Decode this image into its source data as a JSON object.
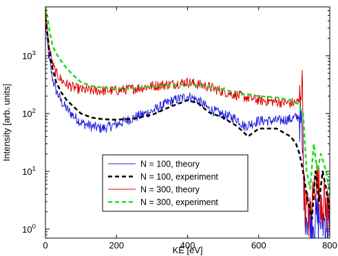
{
  "chart_data": {
    "type": "line",
    "title": "",
    "xlabel": "KE [eV]",
    "ylabel": "Intensity [arb. units]",
    "xlim": [
      0,
      800
    ],
    "ylim": [
      0.7,
      7000
    ],
    "yscale": "log",
    "grid": false,
    "legend_position": "bottom-center",
    "x_ticks": [
      {
        "value": 0,
        "label": "0"
      },
      {
        "value": 200,
        "label": "200"
      },
      {
        "value": 400,
        "label": "400"
      },
      {
        "value": 600,
        "label": "600"
      },
      {
        "value": 800,
        "label": "800"
      }
    ],
    "y_ticks": [
      {
        "value": 1,
        "base": "10",
        "exp": "0"
      },
      {
        "value": 10,
        "base": "10",
        "exp": "1"
      },
      {
        "value": 100,
        "base": "10",
        "exp": "2"
      },
      {
        "value": 1000,
        "base": "10",
        "exp": "3"
      }
    ],
    "series": [
      {
        "name": "N = 100, theory",
        "color": "#1f1fdc",
        "style": "solid",
        "noisy": true,
        "x": [
          0,
          5,
          10,
          20,
          30,
          45,
          60,
          80,
          100,
          130,
          160,
          200,
          250,
          300,
          350,
          400,
          430,
          460,
          500,
          540,
          560,
          600,
          650,
          690,
          715,
          720,
          725,
          730,
          740,
          760,
          780,
          800
        ],
        "y": [
          3500,
          1800,
          900,
          400,
          250,
          160,
          120,
          90,
          70,
          60,
          55,
          65,
          85,
          110,
          160,
          200,
          170,
          120,
          95,
          80,
          60,
          75,
          75,
          80,
          90,
          60,
          12,
          2.5,
          1.5,
          1.5,
          1.5,
          1.2
        ]
      },
      {
        "name": "N = 100, experiment",
        "color": "#000000",
        "style": "dashed",
        "noisy": false,
        "x": [
          0,
          5,
          10,
          20,
          30,
          45,
          60,
          80,
          100,
          130,
          160,
          200,
          250,
          300,
          350,
          400,
          430,
          460,
          500,
          540,
          570,
          600,
          650,
          690,
          705,
          715,
          725,
          735,
          750,
          760,
          770,
          780,
          790,
          800
        ],
        "y": [
          4500,
          2500,
          1300,
          600,
          350,
          230,
          170,
          130,
          100,
          85,
          80,
          78,
          82,
          95,
          130,
          170,
          150,
          105,
          85,
          60,
          40,
          55,
          55,
          40,
          30,
          20,
          10,
          4,
          1.5,
          10,
          3,
          10,
          5,
          2
        ]
      },
      {
        "name": "N = 300, theory",
        "color": "#dd0000",
        "style": "solid",
        "noisy": true,
        "x": [
          0,
          5,
          10,
          20,
          30,
          45,
          60,
          80,
          100,
          130,
          160,
          200,
          250,
          300,
          350,
          400,
          450,
          500,
          550,
          600,
          650,
          690,
          715,
          722,
          728,
          735,
          745,
          760,
          780,
          800
        ],
        "y": [
          6000,
          3000,
          1500,
          700,
          500,
          380,
          320,
          280,
          260,
          250,
          250,
          250,
          270,
          300,
          320,
          350,
          300,
          240,
          200,
          170,
          160,
          150,
          160,
          550,
          4,
          2,
          1.5,
          8,
          3,
          2
        ]
      },
      {
        "name": "N = 300, experiment",
        "color": "#22dd22",
        "style": "dashed",
        "noisy": false,
        "x": [
          0,
          5,
          10,
          20,
          30,
          45,
          60,
          80,
          100,
          130,
          160,
          200,
          250,
          300,
          350,
          400,
          450,
          500,
          550,
          600,
          650,
          690,
          710,
          725,
          735,
          745,
          755,
          765,
          775,
          790,
          800
        ],
        "y": [
          7000,
          5000,
          3000,
          1500,
          1100,
          800,
          600,
          450,
          350,
          300,
          280,
          270,
          275,
          290,
          310,
          320,
          300,
          260,
          220,
          200,
          190,
          170,
          150,
          100,
          10,
          5,
          30,
          10,
          20,
          10,
          4
        ]
      }
    ]
  }
}
